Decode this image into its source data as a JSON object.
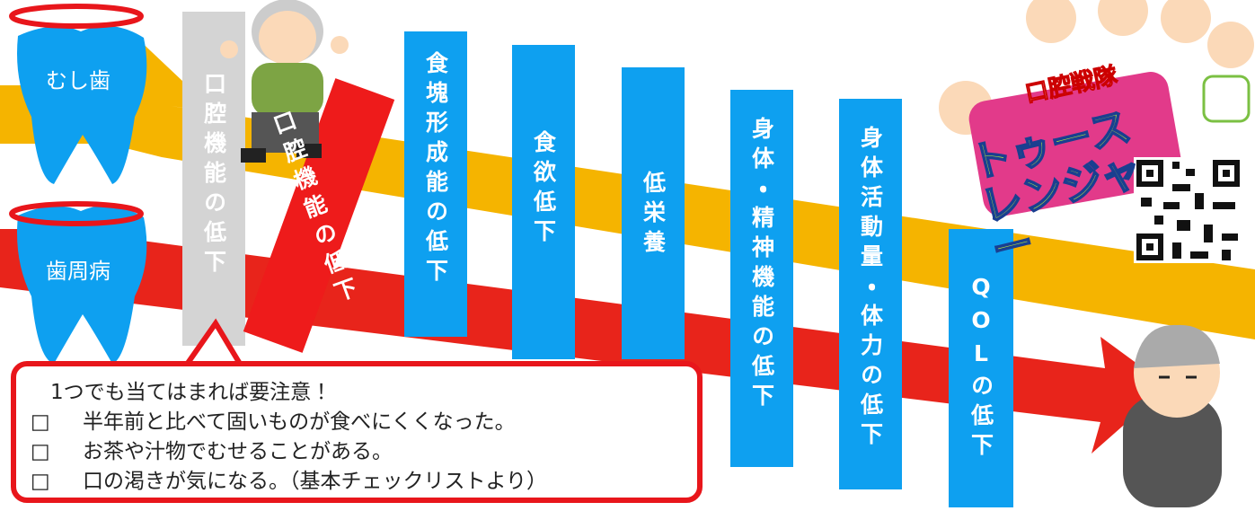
{
  "teeth": [
    {
      "label": "むし歯"
    },
    {
      "label": "歯周病"
    }
  ],
  "stages": [
    {
      "label": "口腔機能の低下"
    },
    {
      "label": "口腔機能の低下"
    },
    {
      "label": "食塊形成能の低下"
    },
    {
      "label": "食欲低下"
    },
    {
      "label": "低栄養"
    },
    {
      "label": "身体・精神機能の低下"
    },
    {
      "label": "身体活動量・体力の低下"
    },
    {
      "label": "QOLの低下"
    }
  ],
  "callout": {
    "heading": "1つでも当てはまれば要注意！",
    "items": [
      {
        "box": "□",
        "text": "半年前と比べて固いものが食べにくくなった。"
      },
      {
        "box": "□",
        "text": "お茶や汁物でむせることがある。"
      },
      {
        "box": "□",
        "text": "口の渇きが気になる。（基本チェックリストより）"
      }
    ]
  },
  "logo": {
    "title": "口腔戦隊",
    "name": "トゥースレンジャー"
  }
}
